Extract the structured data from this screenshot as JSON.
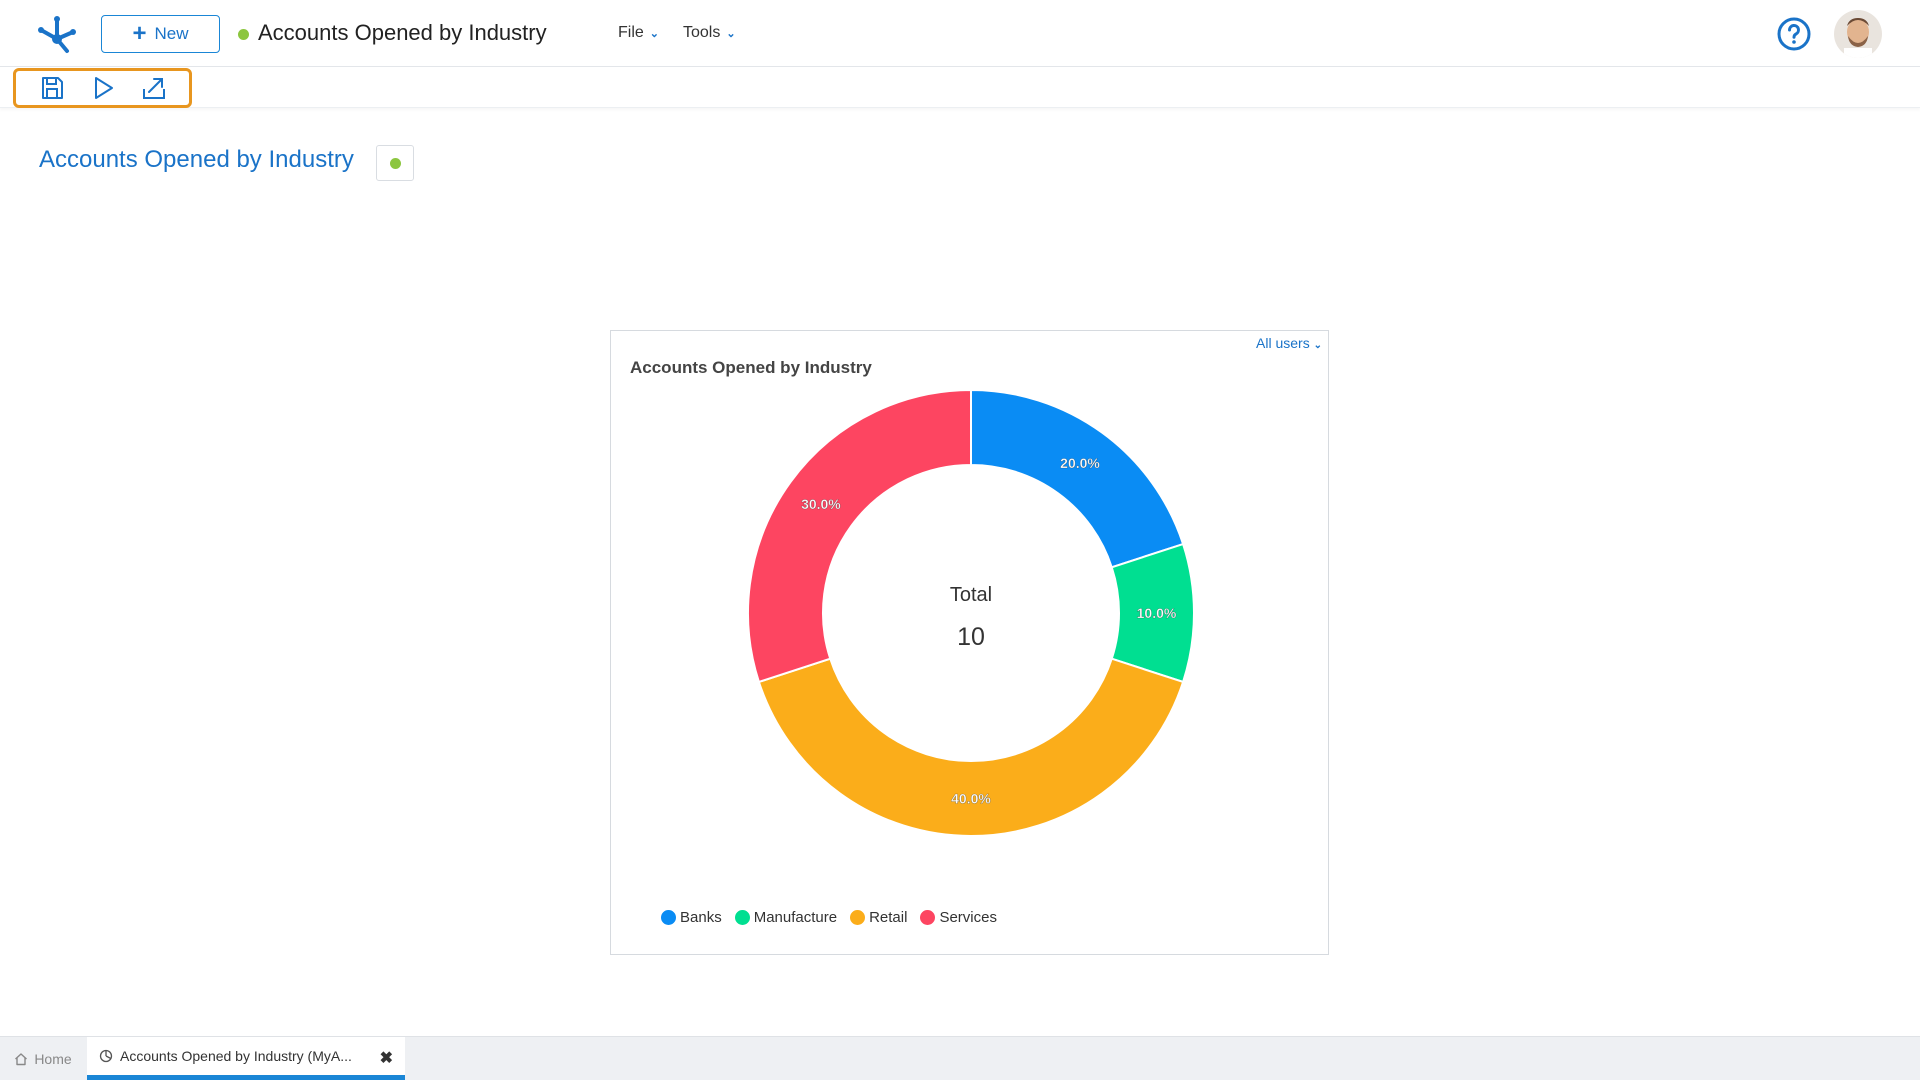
{
  "header": {
    "new_label": "New",
    "title": "Accounts Opened by Industry",
    "status_color": "#8cc63f",
    "menus": [
      {
        "label": "File"
      },
      {
        "label": "Tools"
      }
    ],
    "help_icon": "question-circle-icon",
    "avatar": "user-avatar"
  },
  "toolbar": {
    "icons": [
      "save-icon",
      "play-icon",
      "export-icon"
    ],
    "highlight_color": "#e8961f"
  },
  "page": {
    "title": "Accounts Opened by Industry",
    "status_color": "#8cc63f"
  },
  "panel": {
    "users_filter": "All users",
    "title": "Accounts Opened by Industry",
    "center_label": "Total",
    "center_value": "10"
  },
  "chart_data": {
    "type": "pie",
    "title": "Accounts Opened by Industry",
    "donut": true,
    "categories": [
      "Banks",
      "Manufacture",
      "Retail",
      "Services"
    ],
    "values": [
      20.0,
      10.0,
      40.0,
      30.0
    ],
    "labels": [
      "20.0%",
      "10.0%",
      "40.0%",
      "30.0%"
    ],
    "colors": [
      "#0a8cf4",
      "#00df91",
      "#fbad1a",
      "#fd4561"
    ],
    "center_text": "Total 10",
    "legend_position": "bottom-left"
  },
  "tabs": {
    "home_label": "Home",
    "active_label": "Accounts Opened by Industry (MyA..."
  }
}
